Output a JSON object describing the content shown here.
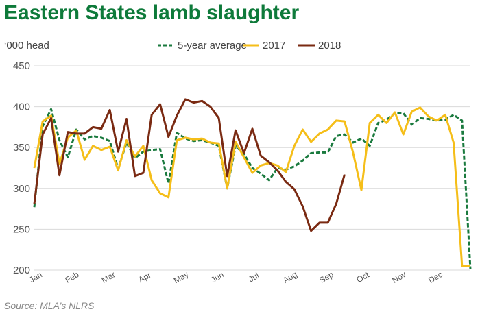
{
  "title": "Eastern States lamb slaughter",
  "source": "Source: MLA’s NLRS",
  "chart_data": {
    "type": "line",
    "ylabel": "‘000 head",
    "ylim": [
      200,
      450
    ],
    "yticks": [
      200,
      250,
      300,
      350,
      400,
      450
    ],
    "grid": true,
    "legend_position": "top",
    "months": [
      "Jan",
      "Feb",
      "Mar",
      "Apr",
      "May",
      "Jun",
      "Jul",
      "Aug",
      "Sep",
      "Oct",
      "Nov",
      "Dec"
    ],
    "series": [
      {
        "name": "5-year average",
        "color": "#1a7a3e",
        "style": "dashed",
        "x": [
          1,
          2,
          3,
          4,
          5,
          6,
          7,
          8,
          9,
          10,
          11,
          12,
          13,
          14,
          15,
          16,
          17,
          18,
          19,
          20,
          21,
          22,
          23,
          24,
          25,
          26,
          27,
          28,
          29,
          30,
          31,
          32,
          33,
          34,
          35,
          36,
          37,
          38,
          39,
          40,
          41,
          42,
          43,
          44,
          45,
          46,
          47,
          48,
          49,
          50,
          51,
          52,
          53
        ],
        "values": [
          277,
          376,
          397,
          359,
          338,
          372,
          360,
          364,
          362,
          358,
          324,
          356,
          337,
          345,
          347,
          348,
          306,
          368,
          361,
          358,
          359,
          356,
          352,
          300,
          352,
          342,
          325,
          318,
          310,
          325,
          323,
          327,
          334,
          343,
          344,
          344,
          364,
          366,
          356,
          361,
          352,
          380,
          384,
          392,
          392,
          378,
          386,
          385,
          383,
          384,
          390,
          383,
          201
        ]
      },
      {
        "name": "2017",
        "color": "#f5be19",
        "style": "solid",
        "x": [
          1,
          2,
          3,
          4,
          5,
          6,
          7,
          8,
          9,
          10,
          11,
          12,
          13,
          14,
          15,
          16,
          17,
          18,
          19,
          20,
          21,
          22,
          23,
          24,
          25,
          26,
          27,
          28,
          29,
          30,
          31,
          32,
          33,
          34,
          35,
          36,
          37,
          38,
          39,
          40,
          41,
          42,
          43,
          44,
          45,
          46,
          47,
          48,
          49,
          50,
          51,
          52,
          53
        ],
        "values": [
          325,
          382,
          389,
          330,
          362,
          371,
          335,
          352,
          347,
          351,
          322,
          359,
          339,
          352,
          310,
          294,
          289,
          359,
          362,
          360,
          361,
          356,
          355,
          300,
          357,
          338,
          319,
          328,
          331,
          328,
          320,
          352,
          372,
          357,
          367,
          372,
          383,
          382,
          344,
          298,
          380,
          390,
          380,
          393,
          366,
          394,
          399,
          388,
          383,
          390,
          356,
          205,
          205
        ]
      },
      {
        "name": "2018",
        "color": "#7a2a12",
        "style": "solid",
        "x": [
          1,
          2,
          3,
          4,
          5,
          6,
          7,
          8,
          9,
          10,
          11,
          12,
          13,
          14,
          15,
          16,
          17,
          18,
          19,
          20,
          21,
          22,
          23,
          24,
          25,
          26,
          27,
          28,
          29,
          30,
          31,
          32,
          33,
          34,
          35,
          36,
          37,
          38
        ],
        "values": [
          281,
          366,
          386,
          316,
          369,
          367,
          367,
          375,
          373,
          396,
          345,
          385,
          315,
          319,
          390,
          403,
          363,
          389,
          409,
          405,
          407,
          400,
          386,
          315,
          371,
          343,
          373,
          340,
          332,
          322,
          308,
          299,
          278,
          248,
          258,
          258,
          281,
          317
        ]
      }
    ]
  }
}
